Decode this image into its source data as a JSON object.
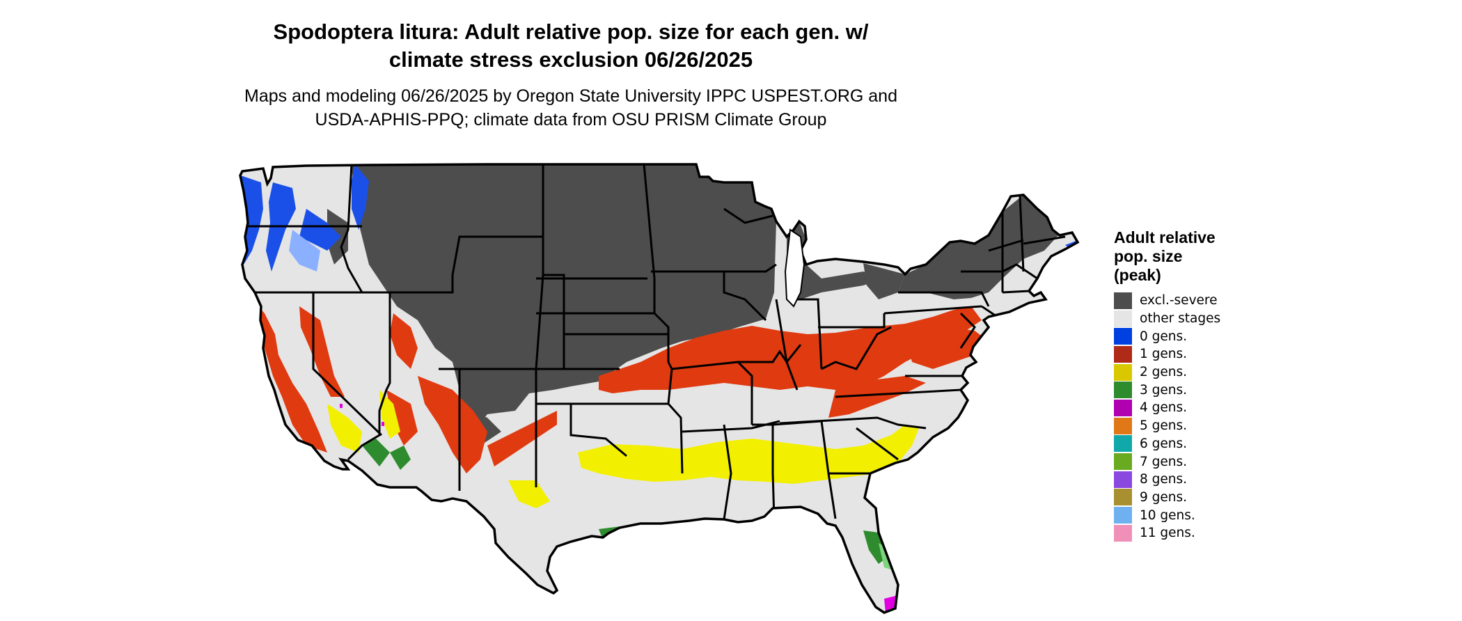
{
  "title": {
    "line1": "Spodoptera litura: Adult relative pop. size for each gen. w/",
    "line2": "climate stress exclusion 06/26/2025"
  },
  "subtitle": {
    "line1": "Maps and modeling 06/26/2025 by Oregon State University IPPC USPEST.ORG and",
    "line2": "USDA-APHIS-PPQ; climate data from OSU PRISM Climate Group"
  },
  "legend": {
    "title_lines": [
      "Adult relative",
      "pop. size",
      "(peak)"
    ],
    "items": [
      {
        "label": "excl.-severe",
        "color": "#4d4d4d"
      },
      {
        "label": "other stages",
        "color": "#e5e5e5"
      },
      {
        "label": "0 gens.",
        "color": "#0040e0"
      },
      {
        "label": "1 gens.",
        "color": "#b02a18"
      },
      {
        "label": "2 gens.",
        "color": "#d9c800"
      },
      {
        "label": "3 gens.",
        "color": "#2e8b2e"
      },
      {
        "label": "4 gens.",
        "color": "#b000b0"
      },
      {
        "label": "5 gens.",
        "color": "#e07818"
      },
      {
        "label": "6 gens.",
        "color": "#10a8a8"
      },
      {
        "label": "7 gens.",
        "color": "#6aaa20"
      },
      {
        "label": "8 gens.",
        "color": "#8a48e0"
      },
      {
        "label": "9 gens.",
        "color": "#a89030"
      },
      {
        "label": "10 gens.",
        "color": "#6fb0f0"
      },
      {
        "label": "11 gens.",
        "color": "#f090b8"
      }
    ]
  },
  "map": {
    "colors": {
      "background": "#e5e5e5",
      "excluded": "#4d4d4d",
      "gen0": "#1a50e8",
      "gen0_light": "#8ab0ff",
      "gen1": "#e03a10",
      "gen1_dark": "#c02810",
      "gen2": "#f2f000",
      "gen3": "#2e8b2e",
      "gen3_light": "#7ed47e",
      "gen4": "#e000e0",
      "border": "#000000"
    }
  }
}
